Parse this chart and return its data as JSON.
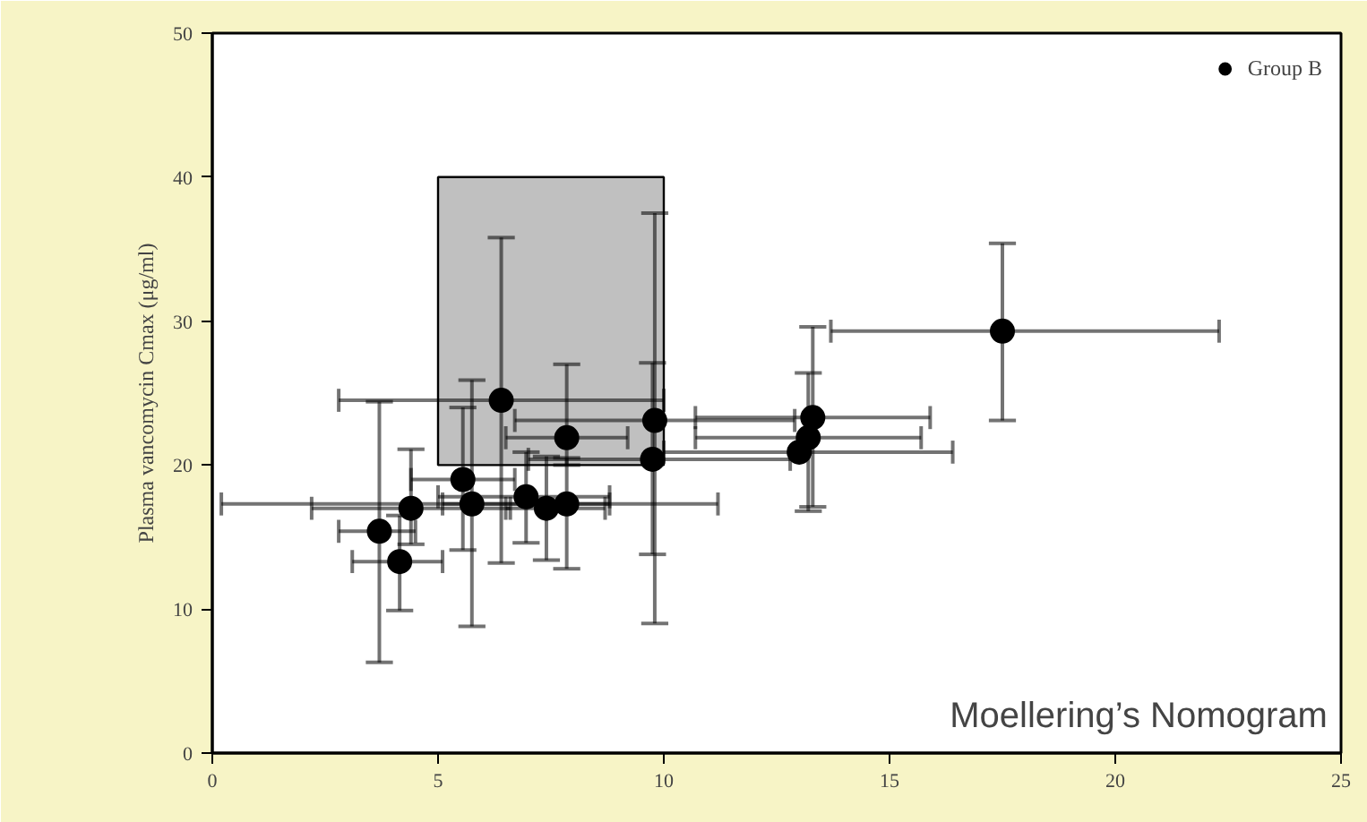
{
  "chart_data": {
    "type": "scatter",
    "ylabel": "Plasma vancomycin Cmax (μg/ml)",
    "xlim": [
      0,
      25
    ],
    "xticks": [
      0,
      5,
      10,
      15,
      20,
      25
    ],
    "ylim": [
      0,
      50
    ],
    "yticks": [
      0,
      10,
      20,
      30,
      40,
      50
    ],
    "grid": false,
    "legend": "top right",
    "marker": "circle",
    "annotations": [
      "Moellering’s Nomogram"
    ],
    "series": [
      {
        "type": "area",
        "color": "#c0c0c0",
        "marker": "none",
        "x": [
          5,
          5,
          10,
          10,
          5
        ],
        "values": [
          20,
          40,
          40,
          20,
          20
        ]
      },
      {
        "name": "Group B",
        "color": "#000000",
        "x": [
          6.4,
          7.85,
          7.85,
          5.55,
          5.75,
          4.4,
          3.7,
          4.15,
          6.95,
          7.4,
          9.8,
          9.75,
          13.3,
          13.2,
          13.0,
          17.5
        ],
        "values": [
          24.5,
          21.9,
          17.3,
          19.0,
          17.3,
          17.0,
          15.4,
          13.3,
          17.8,
          17.0,
          23.1,
          20.4,
          23.3,
          21.9,
          20.9,
          29.3
        ],
        "xerrors": [
          [
            2.8,
            10.0
          ],
          [
            6.5,
            9.2
          ],
          [
            5.1,
            8.8
          ],
          [
            4.4,
            6.7
          ],
          [
            0.2,
            11.2
          ],
          [
            2.2,
            6.6
          ],
          [
            2.8,
            4.5
          ],
          [
            3.1,
            5.1
          ],
          [
            5.0,
            8.8
          ],
          [
            6.5,
            8.7
          ],
          [
            6.7,
            12.9
          ],
          [
            7.0,
            12.8
          ],
          [
            10.7,
            15.9
          ],
          [
            10.7,
            15.7
          ],
          [
            10.0,
            16.4
          ],
          [
            13.7,
            22.3
          ]
        ],
        "errors": [
          [
            13.2,
            35.8
          ],
          [
            20.0,
            27.0
          ],
          [
            12.8,
            20.5
          ],
          [
            14.1,
            24.0
          ],
          [
            8.8,
            25.9
          ],
          [
            14.5,
            21.1
          ],
          [
            6.3,
            24.4
          ],
          [
            9.9,
            16.5
          ],
          [
            14.6,
            20.9
          ],
          [
            13.4,
            20.6
          ],
          [
            9.0,
            37.5
          ],
          [
            13.8,
            27.1
          ],
          [
            17.1,
            29.6
          ],
          [
            16.8,
            26.4
          ],
          null,
          [
            23.1,
            35.4
          ]
        ]
      }
    ]
  }
}
